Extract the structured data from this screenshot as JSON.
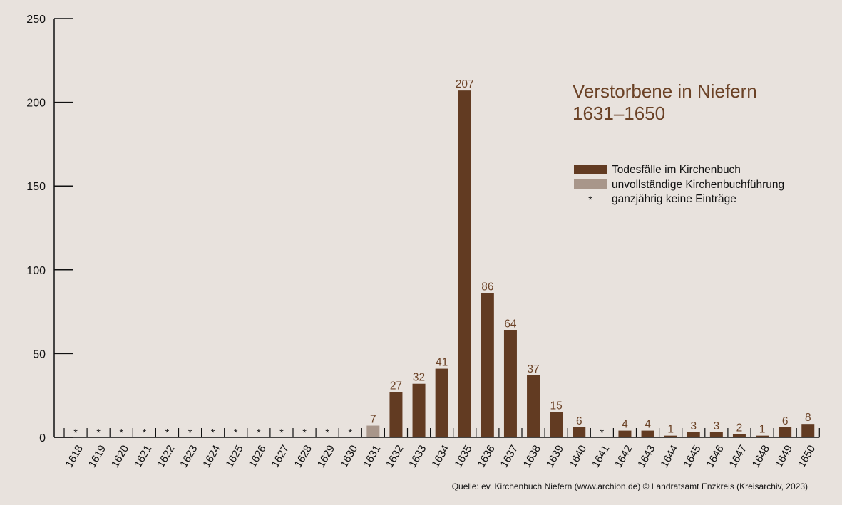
{
  "chart_data": {
    "type": "bar",
    "title_line1": "Verstorbene in Niefern",
    "title_line2": "1631–1650",
    "categories": [
      "1618",
      "1619",
      "1620",
      "1621",
      "1622",
      "1623",
      "1624",
      "1625",
      "1626",
      "1627",
      "1628",
      "1629",
      "1630",
      "1631",
      "1632",
      "1633",
      "1634",
      "1635",
      "1636",
      "1637",
      "1638",
      "1639",
      "1640",
      "1641",
      "1642",
      "1643",
      "1644",
      "1645",
      "1646",
      "1647",
      "1648",
      "1649",
      "1650"
    ],
    "values": [
      null,
      null,
      null,
      null,
      null,
      null,
      null,
      null,
      null,
      null,
      null,
      null,
      null,
      7,
      27,
      32,
      41,
      207,
      86,
      64,
      37,
      15,
      6,
      null,
      4,
      4,
      1,
      3,
      3,
      2,
      1,
      6,
      8
    ],
    "status": [
      "none",
      "none",
      "none",
      "none",
      "none",
      "none",
      "none",
      "none",
      "none",
      "none",
      "none",
      "none",
      "none",
      "incomplete",
      "complete",
      "complete",
      "complete",
      "complete",
      "complete",
      "complete",
      "complete",
      "complete",
      "complete",
      "none",
      "complete",
      "complete",
      "complete",
      "complete",
      "complete",
      "complete",
      "complete",
      "complete",
      "complete"
    ],
    "no_entry_marker": "*",
    "ylim": [
      0,
      250
    ],
    "yticks": [
      0,
      50,
      100,
      150,
      200,
      250
    ],
    "legend": [
      {
        "label": "Todesfälle im Kirchenbuch",
        "color": "#623b22",
        "kind": "swatch"
      },
      {
        "label": "unvollständige Kirchenbuchführung",
        "color": "#a8968a",
        "kind": "swatch"
      },
      {
        "label": "ganzjährig keine Einträge",
        "marker": "*",
        "kind": "marker"
      }
    ],
    "legend_position": "top-right",
    "colors": {
      "complete": "#623b22",
      "incomplete": "#a8968a",
      "label": "#6b4226"
    },
    "grid": false,
    "source": "Quelle: ev. Kirchenbuch Niefern (www.archion.de)  © Landratsamt Enzkreis (Kreisarchiv, 2023)"
  }
}
